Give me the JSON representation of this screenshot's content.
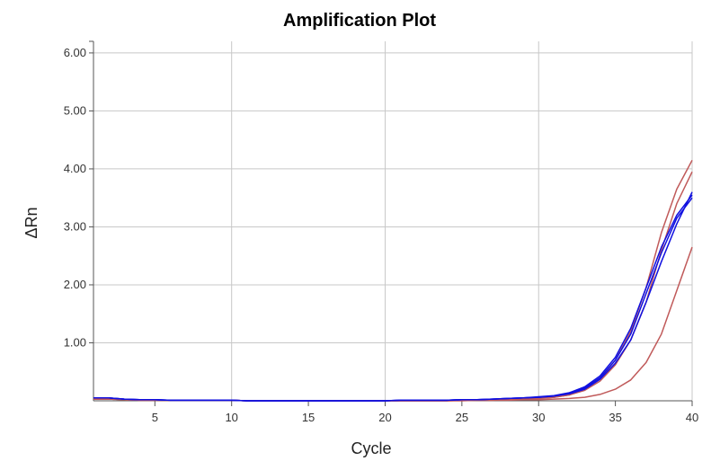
{
  "chart_data": {
    "type": "line",
    "title": "Amplification Plot",
    "xlabel": "Cycle",
    "ylabel": "ΔRn",
    "xlim": [
      1,
      40
    ],
    "ylim": [
      0,
      6.2
    ],
    "x_ticks": [
      5,
      10,
      15,
      20,
      25,
      30,
      35,
      40
    ],
    "x_tick_labels": [
      "5",
      "10",
      "15",
      "20",
      "25",
      "30",
      "35",
      "40"
    ],
    "y_ticks": [
      1,
      2,
      3,
      4,
      5,
      6
    ],
    "y_tick_labels": [
      "1.00",
      "2.00",
      "3.00",
      "4.00",
      "5.00",
      "6.00"
    ],
    "grid": true,
    "colors": {
      "blue": "#1010e0",
      "red": "#c05a5a"
    },
    "x": [
      1,
      2,
      3,
      4,
      5,
      6,
      7,
      8,
      9,
      10,
      11,
      12,
      13,
      14,
      15,
      16,
      17,
      18,
      19,
      20,
      21,
      22,
      23,
      24,
      25,
      26,
      27,
      28,
      29,
      30,
      31,
      32,
      33,
      34,
      35,
      36,
      37,
      38,
      39,
      40
    ],
    "series": [
      {
        "color": "#c05a5a",
        "values": [
          0.03,
          0.03,
          0.02,
          0.01,
          0.01,
          0.01,
          0.01,
          0.01,
          0.01,
          0.01,
          0.0,
          0.0,
          0.0,
          0.0,
          0.0,
          0.0,
          0.0,
          0.0,
          0.0,
          0.0,
          0.0,
          0.0,
          0.0,
          0.0,
          0.01,
          0.01,
          0.01,
          0.02,
          0.03,
          0.04,
          0.06,
          0.1,
          0.2,
          0.38,
          0.7,
          1.2,
          1.95,
          2.9,
          3.65,
          4.15
        ]
      },
      {
        "color": "#c05a5a",
        "values": [
          0.03,
          0.03,
          0.02,
          0.01,
          0.01,
          0.01,
          0.01,
          0.01,
          0.01,
          0.01,
          0.0,
          0.0,
          0.0,
          0.0,
          0.0,
          0.0,
          0.0,
          0.0,
          0.0,
          0.0,
          0.0,
          0.0,
          0.0,
          0.0,
          0.01,
          0.01,
          0.01,
          0.02,
          0.03,
          0.04,
          0.06,
          0.1,
          0.18,
          0.34,
          0.62,
          1.05,
          1.7,
          2.6,
          3.4,
          3.95
        ]
      },
      {
        "color": "#c05a5a",
        "values": [
          0.03,
          0.03,
          0.02,
          0.01,
          0.01,
          0.01,
          0.01,
          0.01,
          0.01,
          0.01,
          0.0,
          0.0,
          0.0,
          0.0,
          0.0,
          0.0,
          0.0,
          0.0,
          0.0,
          0.0,
          0.0,
          0.0,
          0.0,
          0.0,
          0.0,
          0.01,
          0.01,
          0.01,
          0.02,
          0.02,
          0.03,
          0.04,
          0.06,
          0.11,
          0.2,
          0.36,
          0.66,
          1.15,
          1.9,
          2.65
        ]
      },
      {
        "color": "#1010e0",
        "values": [
          0.05,
          0.05,
          0.03,
          0.02,
          0.02,
          0.01,
          0.01,
          0.01,
          0.01,
          0.01,
          0.0,
          0.0,
          0.0,
          0.0,
          0.0,
          0.0,
          0.0,
          0.0,
          0.0,
          0.0,
          0.01,
          0.01,
          0.01,
          0.01,
          0.02,
          0.02,
          0.03,
          0.04,
          0.05,
          0.07,
          0.09,
          0.14,
          0.24,
          0.43,
          0.75,
          1.25,
          1.95,
          2.65,
          3.2,
          3.55
        ]
      },
      {
        "color": "#1010e0",
        "values": [
          0.05,
          0.05,
          0.03,
          0.02,
          0.02,
          0.01,
          0.01,
          0.01,
          0.01,
          0.01,
          0.0,
          0.0,
          0.0,
          0.0,
          0.0,
          0.0,
          0.0,
          0.0,
          0.0,
          0.0,
          0.01,
          0.01,
          0.01,
          0.01,
          0.02,
          0.02,
          0.03,
          0.04,
          0.05,
          0.06,
          0.08,
          0.13,
          0.22,
          0.4,
          0.7,
          1.15,
          1.85,
          2.55,
          3.15,
          3.5
        ]
      },
      {
        "color": "#1010e0",
        "values": [
          0.05,
          0.05,
          0.03,
          0.02,
          0.02,
          0.01,
          0.01,
          0.01,
          0.01,
          0.01,
          0.0,
          0.0,
          0.0,
          0.0,
          0.0,
          0.0,
          0.0,
          0.0,
          0.0,
          0.0,
          0.01,
          0.01,
          0.01,
          0.01,
          0.02,
          0.02,
          0.03,
          0.04,
          0.05,
          0.06,
          0.08,
          0.12,
          0.2,
          0.37,
          0.65,
          1.05,
          1.7,
          2.4,
          3.05,
          3.6
        ]
      }
    ]
  }
}
